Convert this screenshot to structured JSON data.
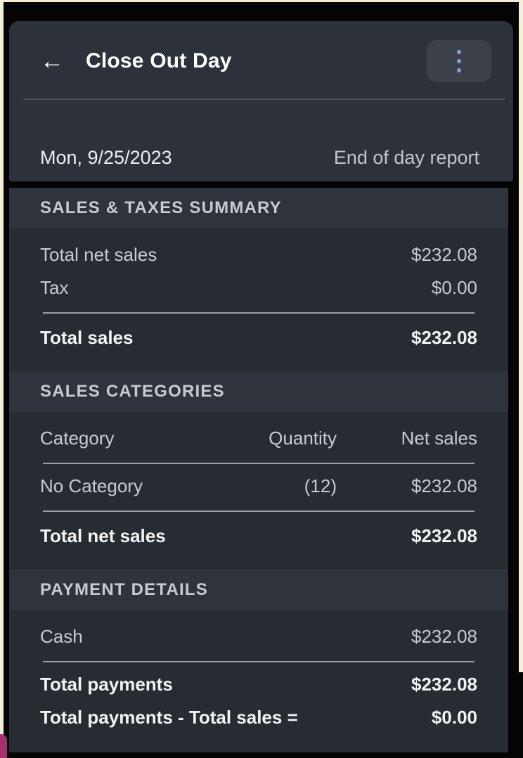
{
  "header": {
    "back_icon": "←",
    "title": "Close Out Day",
    "menu_icon": "kebab-menu",
    "date": "Mon, 9/25/2023",
    "report_type": "End of day report"
  },
  "sales_taxes_summary": {
    "title": "SALES & TAXES SUMMARY",
    "rows": [
      {
        "label": "Total net sales",
        "value": "$232.08"
      },
      {
        "label": "Tax",
        "value": "$0.00"
      }
    ],
    "total": {
      "label": "Total sales",
      "value": "$232.08"
    }
  },
  "sales_categories": {
    "title": "SALES CATEGORIES",
    "columns": {
      "category": "Category",
      "quantity": "Quantity",
      "net_sales": "Net sales"
    },
    "rows": [
      {
        "category": "No Category",
        "quantity": "(12)",
        "net_sales": "$232.08"
      }
    ],
    "total": {
      "label": "Total net sales",
      "value": "$232.08"
    }
  },
  "payment_details": {
    "title": "PAYMENT DETAILS",
    "rows": [
      {
        "label": "Cash",
        "value": "$232.08"
      }
    ],
    "totals": [
      {
        "label": "Total payments",
        "value": "$232.08"
      },
      {
        "label": "Total payments - Total sales =",
        "value": "$0.00"
      }
    ]
  },
  "colors": {
    "card_background": "#2d3139",
    "panel_background": "#272b32",
    "section_band": "#2f343c",
    "kebab_dots_accent": "#82a3d8",
    "divider_light": "#9aa0a8",
    "screenshot_border": "#f5efd5",
    "cursor_artifact": "#a93070"
  }
}
